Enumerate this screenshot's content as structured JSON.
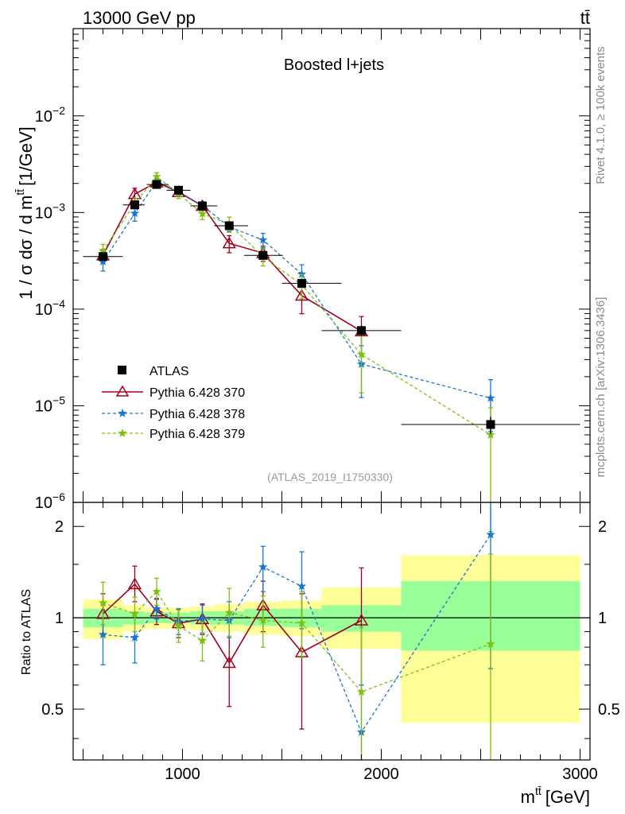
{
  "header": {
    "energy_label": "13000 GeV pp",
    "process_label": "tt̄"
  },
  "side": {
    "rivet_label": "Rivet 4.1.0, ≥ 100k events",
    "mcplots_label": "mcplots.cern.ch [arXiv:1306.3436]"
  },
  "colors": {
    "atlas": "#000000",
    "p370": "#a00020",
    "p378": "#1a74d6",
    "p379": "#7fbf10",
    "band_inner": "#99ff99",
    "band_outer": "#ffff99"
  },
  "chart_data": [
    {
      "type": "scatter",
      "title": "Boosted l+jets",
      "watermark": "(ATLAS_2019_I1750330)",
      "xlabel": "m",
      "xlabel_sup": "tt̄",
      "xlabel_unit": "[GeV]",
      "ylabel": "1 / σ dσ / d m",
      "ylabel_sup": "tt̄",
      "ylabel_unit": "[1/GeV]",
      "xlim": [
        450,
        3050
      ],
      "ylim": [
        1e-06,
        0.08
      ],
      "yscale": "log",
      "ytick_labels": [
        {
          "value": 1e-06,
          "base": "10",
          "exp": "−6"
        },
        {
          "value": 1e-05,
          "base": "10",
          "exp": "−5"
        },
        {
          "value": 0.0001,
          "base": "10",
          "exp": "−4"
        },
        {
          "value": 0.001,
          "base": "10",
          "exp": "−3"
        },
        {
          "value": 0.01,
          "base": "10",
          "exp": "−2"
        }
      ],
      "legend_position": "lower-left",
      "series": [
        {
          "name": "ATLAS",
          "marker": "square",
          "style": "points",
          "x": [
            600,
            760,
            870,
            980,
            1100,
            1235,
            1405,
            1600,
            1900,
            2550
          ],
          "xerr_lo": [
            100,
            60,
            50,
            60,
            60,
            75,
            95,
            100,
            200,
            450
          ],
          "xerr_hi": [
            100,
            50,
            60,
            60,
            75,
            95,
            100,
            200,
            200,
            450
          ],
          "y": [
            0.00035,
            0.0012,
            0.00195,
            0.0017,
            0.00117,
            0.00073,
            0.00036,
            0.000185,
            6e-05,
            6.4e-06
          ],
          "yerr_rel": [
            0.08,
            0.06,
            0.05,
            0.05,
            0.06,
            0.07,
            0.08,
            0.1,
            0.12,
            0.2
          ]
        },
        {
          "name": "Pythia 6.428 370",
          "marker": "triangle",
          "style": "solid",
          "x": [
            600,
            760,
            870,
            980,
            1100,
            1235,
            1405,
            1600,
            1900
          ],
          "y": [
            0.00036,
            0.00155,
            0.00205,
            0.00163,
            0.00117,
            0.00048,
            0.00038,
            0.000138,
            5.9e-05
          ],
          "yerr_rel": [
            0.15,
            0.15,
            0.08,
            0.09,
            0.1,
            0.2,
            0.18,
            0.35,
            0.42
          ]
        },
        {
          "name": "Pythia 6.428 378",
          "marker": "star",
          "style": "dashed",
          "x": [
            600,
            760,
            870,
            980,
            1100,
            1235,
            1405,
            1600,
            1900,
            2550
          ],
          "y": [
            0.00031,
            0.00098,
            0.0021,
            0.00165,
            0.00118,
            0.00071,
            0.00052,
            0.00023,
            2.7e-05,
            1.2e-05
          ],
          "yerr_rel": [
            0.2,
            0.17,
            0.07,
            0.09,
            0.09,
            0.1,
            0.17,
            0.25,
            0.55,
            0.55
          ]
        },
        {
          "name": "Pythia 6.428 379",
          "marker": "star",
          "style": "dashed",
          "x": [
            600,
            760,
            870,
            980,
            1100,
            1235,
            1405,
            1600,
            1900,
            2550
          ],
          "y": [
            0.0004,
            0.00124,
            0.00235,
            0.00157,
            0.00097,
            0.00076,
            0.00035,
            0.000178,
            3.4e-05,
            5e-06
          ],
          "yerr_rel": [
            0.17,
            0.12,
            0.1,
            0.11,
            0.13,
            0.18,
            0.2,
            0.28,
            0.6,
            0.9
          ]
        }
      ]
    },
    {
      "type": "scatter",
      "ylabel": "Ratio to ATLAS",
      "xlim": [
        450,
        3050
      ],
      "ylim": [
        0.34,
        2.4
      ],
      "yscale": "log",
      "ytick_labels": [
        {
          "value": 0.5,
          "label": "0.5"
        },
        {
          "value": 1,
          "label": "1"
        },
        {
          "value": 2,
          "label": "2"
        }
      ],
      "xtick_labels": [
        {
          "value": 1000,
          "label": "1000"
        },
        {
          "value": 2000,
          "label": "2000"
        },
        {
          "value": 3000,
          "label": "3000"
        }
      ],
      "bands": [
        {
          "x0": 500,
          "x1": 700,
          "inner": [
            0.93,
            1.07
          ],
          "outer": [
            0.85,
            1.15
          ]
        },
        {
          "x0": 700,
          "x1": 810,
          "inner": [
            0.95,
            1.05
          ],
          "outer": [
            0.9,
            1.1
          ]
        },
        {
          "x0": 810,
          "x1": 930,
          "inner": [
            0.96,
            1.04
          ],
          "outer": [
            0.92,
            1.08
          ]
        },
        {
          "x0": 930,
          "x1": 1040,
          "inner": [
            0.96,
            1.04
          ],
          "outer": [
            0.92,
            1.08
          ]
        },
        {
          "x0": 1040,
          "x1": 1160,
          "inner": [
            0.95,
            1.05
          ],
          "outer": [
            0.91,
            1.09
          ]
        },
        {
          "x0": 1160,
          "x1": 1310,
          "inner": [
            0.95,
            1.05
          ],
          "outer": [
            0.9,
            1.11
          ]
        },
        {
          "x0": 1310,
          "x1": 1500,
          "inner": [
            0.94,
            1.07
          ],
          "outer": [
            0.88,
            1.13
          ]
        },
        {
          "x0": 1500,
          "x1": 1700,
          "inner": [
            0.93,
            1.07
          ],
          "outer": [
            0.87,
            1.14
          ]
        },
        {
          "x0": 1700,
          "x1": 2100,
          "inner": [
            0.9,
            1.1
          ],
          "outer": [
            0.79,
            1.26
          ]
        },
        {
          "x0": 2100,
          "x1": 3000,
          "inner": [
            0.78,
            1.32
          ],
          "outer": [
            0.45,
            1.61
          ]
        }
      ],
      "series": [
        {
          "name": "Pythia 6.428 370",
          "x": [
            600,
            760,
            870,
            980,
            1100,
            1235,
            1405,
            1600,
            1900
          ],
          "y": [
            1.03,
            1.29,
            1.05,
            0.96,
            0.99,
            0.71,
            1.1,
            0.77,
            0.98
          ],
          "yerr_lo": [
            0.15,
            0.16,
            0.1,
            0.1,
            0.11,
            0.2,
            0.2,
            0.34,
            0.38
          ],
          "yerr_hi": [
            0.17,
            0.19,
            0.1,
            0.11,
            0.12,
            0.27,
            0.22,
            0.43,
            0.48
          ]
        },
        {
          "name": "Pythia 6.428 378",
          "x": [
            600,
            760,
            870,
            980,
            1100,
            1235,
            1405,
            1600,
            1900,
            2550
          ],
          "y": [
            0.88,
            0.86,
            1.07,
            0.97,
            0.99,
            0.98,
            1.47,
            1.27,
            0.42,
            1.88
          ],
          "yerr_lo": [
            0.18,
            0.15,
            0.08,
            0.09,
            0.1,
            0.12,
            0.25,
            0.35,
            0.13,
            1.2
          ],
          "yerr_hi": [
            0.22,
            0.18,
            0.09,
            0.1,
            0.11,
            0.15,
            0.25,
            0.38,
            0.18,
            0.9
          ]
        },
        {
          "name": "Pythia 6.428 379",
          "x": [
            600,
            760,
            870,
            980,
            1100,
            1235,
            1405,
            1600,
            1900,
            2550
          ],
          "y": [
            1.12,
            1.03,
            1.22,
            0.94,
            0.84,
            1.04,
            0.98,
            0.96,
            0.57,
            0.82
          ],
          "yerr_lo": [
            0.17,
            0.13,
            0.12,
            0.11,
            0.12,
            0.17,
            0.18,
            0.22,
            0.26,
            0.6
          ],
          "yerr_hi": [
            0.19,
            0.14,
            0.13,
            0.12,
            0.13,
            0.21,
            0.2,
            0.26,
            0.36,
            0.8
          ]
        }
      ]
    }
  ]
}
